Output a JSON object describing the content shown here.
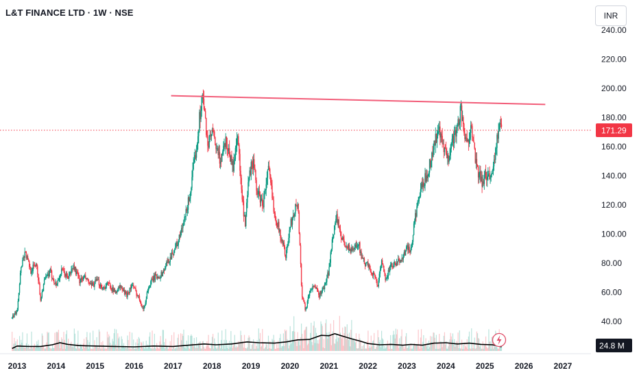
{
  "header": {
    "title": "L&T FINANCE LTD · 1W · NSE",
    "currency": "INR"
  },
  "price_badge": {
    "label": "171.29",
    "color": "#f23645"
  },
  "volume_badge": {
    "label": "24.8 M",
    "color": "#131722"
  },
  "colors": {
    "up": "#089981",
    "down": "#f23645",
    "trendline": "#f25c78",
    "volume_line": "#000000"
  },
  "chart_data": {
    "type": "line",
    "style": "candlestick",
    "grid": false,
    "x_ticks": [
      "2013",
      "2014",
      "2015",
      "2016",
      "2017",
      "2018",
      "2019",
      "2020",
      "2021",
      "2022",
      "2023",
      "2024",
      "2025",
      "2026",
      "2027"
    ],
    "y_ticks": [
      "40.00",
      "60.00",
      "80.00",
      "100.00",
      "120.00",
      "140.00",
      "160.00",
      "180.00",
      "200.00",
      "220.00",
      "240.00"
    ],
    "ylim": [
      36,
      245
    ],
    "xlim": [
      2012.85,
      2028.05
    ],
    "current_price": 171.29,
    "price_path": [
      [
        2012.87,
        42
      ],
      [
        2013.0,
        48
      ],
      [
        2013.1,
        78
      ],
      [
        2013.2,
        88
      ],
      [
        2013.35,
        75
      ],
      [
        2013.5,
        80
      ],
      [
        2013.6,
        55
      ],
      [
        2013.7,
        68
      ],
      [
        2013.85,
        74
      ],
      [
        2014.0,
        65
      ],
      [
        2014.15,
        75
      ],
      [
        2014.3,
        70
      ],
      [
        2014.45,
        78
      ],
      [
        2014.6,
        68
      ],
      [
        2014.75,
        70
      ],
      [
        2014.9,
        64
      ],
      [
        2015.05,
        68
      ],
      [
        2015.2,
        63
      ],
      [
        2015.35,
        66
      ],
      [
        2015.5,
        60
      ],
      [
        2015.65,
        64
      ],
      [
        2015.8,
        58
      ],
      [
        2015.95,
        65
      ],
      [
        2016.05,
        60
      ],
      [
        2016.15,
        55
      ],
      [
        2016.25,
        48
      ],
      [
        2016.35,
        62
      ],
      [
        2016.5,
        70
      ],
      [
        2016.7,
        72
      ],
      [
        2016.85,
        80
      ],
      [
        2017.0,
        88
      ],
      [
        2017.15,
        96
      ],
      [
        2017.3,
        110
      ],
      [
        2017.45,
        130
      ],
      [
        2017.6,
        160
      ],
      [
        2017.7,
        185
      ],
      [
        2017.75,
        195
      ],
      [
        2017.8,
        185
      ],
      [
        2017.9,
        160
      ],
      [
        2018.0,
        170
      ],
      [
        2018.1,
        160
      ],
      [
        2018.2,
        150
      ],
      [
        2018.35,
        165
      ],
      [
        2018.45,
        155
      ],
      [
        2018.55,
        145
      ],
      [
        2018.65,
        172
      ],
      [
        2018.75,
        130
      ],
      [
        2018.85,
        105
      ],
      [
        2018.95,
        140
      ],
      [
        2019.05,
        150
      ],
      [
        2019.15,
        130
      ],
      [
        2019.3,
        120
      ],
      [
        2019.45,
        145
      ],
      [
        2019.6,
        115
      ],
      [
        2019.75,
        100
      ],
      [
        2019.9,
        85
      ],
      [
        2020.0,
        105
      ],
      [
        2020.1,
        115
      ],
      [
        2020.2,
        122
      ],
      [
        2020.25,
        95
      ],
      [
        2020.3,
        60
      ],
      [
        2020.4,
        48
      ],
      [
        2020.5,
        60
      ],
      [
        2020.6,
        65
      ],
      [
        2020.75,
        58
      ],
      [
        2020.9,
        65
      ],
      [
        2021.0,
        75
      ],
      [
        2021.1,
        100
      ],
      [
        2021.2,
        112
      ],
      [
        2021.3,
        98
      ],
      [
        2021.45,
        92
      ],
      [
        2021.6,
        88
      ],
      [
        2021.75,
        95
      ],
      [
        2021.85,
        82
      ],
      [
        2022.0,
        78
      ],
      [
        2022.15,
        72
      ],
      [
        2022.25,
        65
      ],
      [
        2022.35,
        80
      ],
      [
        2022.45,
        70
      ],
      [
        2022.6,
        78
      ],
      [
        2022.75,
        80
      ],
      [
        2022.9,
        85
      ],
      [
        2023.0,
        90
      ],
      [
        2023.1,
        88
      ],
      [
        2023.2,
        110
      ],
      [
        2023.35,
        130
      ],
      [
        2023.5,
        140
      ],
      [
        2023.65,
        155
      ],
      [
        2023.8,
        172
      ],
      [
        2023.95,
        158
      ],
      [
        2024.05,
        150
      ],
      [
        2024.15,
        165
      ],
      [
        2024.3,
        172
      ],
      [
        2024.38,
        188
      ],
      [
        2024.45,
        170
      ],
      [
        2024.55,
        160
      ],
      [
        2024.65,
        180
      ],
      [
        2024.75,
        150
      ],
      [
        2024.85,
        140
      ],
      [
        2024.95,
        135
      ],
      [
        2025.05,
        142
      ],
      [
        2025.15,
        138
      ],
      [
        2025.25,
        155
      ],
      [
        2025.35,
        170
      ],
      [
        2025.4,
        178
      ],
      [
        2025.43,
        171
      ]
    ],
    "annotations": [
      {
        "type": "trendline",
        "x1": 2016.95,
        "y1": 195,
        "x2": 2026.55,
        "y2": 189
      },
      {
        "type": "hline_dotted",
        "y": 171.29
      }
    ],
    "volume_ma": [
      [
        2012.87,
        0.3
      ],
      [
        2013.0,
        0.6
      ],
      [
        2013.3,
        0.55
      ],
      [
        2013.6,
        0.55
      ],
      [
        2013.9,
        0.75
      ],
      [
        2014.1,
        1.0
      ],
      [
        2014.3,
        0.8
      ],
      [
        2014.6,
        0.65
      ],
      [
        2015.0,
        0.6
      ],
      [
        2015.5,
        0.55
      ],
      [
        2016.0,
        0.5
      ],
      [
        2016.5,
        0.6
      ],
      [
        2017.0,
        0.55
      ],
      [
        2017.4,
        0.7
      ],
      [
        2017.8,
        0.85
      ],
      [
        2018.1,
        0.75
      ],
      [
        2018.5,
        0.85
      ],
      [
        2018.9,
        1.1
      ],
      [
        2019.2,
        1.0
      ],
      [
        2019.6,
        0.95
      ],
      [
        2019.9,
        1.1
      ],
      [
        2020.2,
        1.35
      ],
      [
        2020.5,
        1.4
      ],
      [
        2020.8,
        1.9
      ],
      [
        2021.0,
        1.85
      ],
      [
        2021.15,
        2.1
      ],
      [
        2021.35,
        1.8
      ],
      [
        2021.6,
        1.45
      ],
      [
        2021.8,
        1.2
      ],
      [
        2022.0,
        0.9
      ],
      [
        2022.3,
        0.75
      ],
      [
        2022.6,
        0.8
      ],
      [
        2022.9,
        0.7
      ],
      [
        2023.1,
        0.8
      ],
      [
        2023.4,
        0.7
      ],
      [
        2023.7,
        0.95
      ],
      [
        2024.0,
        1.0
      ],
      [
        2024.3,
        0.85
      ],
      [
        2024.6,
        0.95
      ],
      [
        2024.9,
        0.8
      ],
      [
        2025.2,
        0.75
      ],
      [
        2025.43,
        0.5
      ]
    ]
  }
}
